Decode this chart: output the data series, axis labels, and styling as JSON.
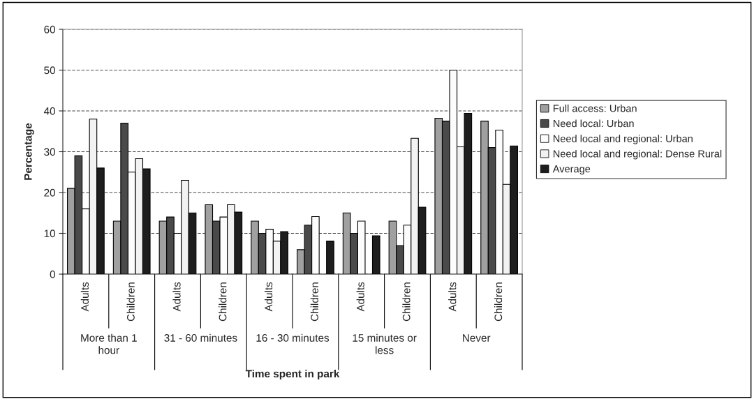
{
  "chart_data": {
    "type": "bar",
    "xlabel": "Time spent in park",
    "ylabel": "Percentage",
    "categories": [
      "Adults",
      "Children",
      "Adults",
      "Children",
      "Adults",
      "Children",
      "Adults",
      "Children",
      "Adults",
      "Children"
    ],
    "series": [
      {
        "name": "Full access: Urban",
        "color": "#a0a0a0",
        "values": [
          21,
          13,
          13,
          17,
          13,
          6,
          15,
          13,
          38.2,
          37.5
        ]
      },
      {
        "name": "Need local: Urban",
        "color": "#4a4a4a",
        "values": [
          29,
          37,
          14,
          13,
          10,
          12,
          10,
          7,
          37.5,
          31
        ]
      },
      {
        "name": "Need local and regional: Urban",
        "color": "#fcfcfc",
        "values": [
          16,
          25,
          10,
          14,
          11,
          14.1,
          13,
          12,
          50,
          35.3
        ]
      },
      {
        "name": "Need local and regional: Dense Rural",
        "color": "#f2f2f2",
        "values": [
          38,
          28.3,
          23,
          17,
          8.1,
          null,
          null,
          33.3,
          31.2,
          22
        ]
      },
      {
        "name": "Average",
        "color": "#1e1e1e",
        "values": [
          26,
          25.8,
          15,
          15.2,
          10.4,
          8.1,
          9.4,
          16.4,
          39.4,
          31.4
        ]
      }
    ],
    "annotations": [
      "More than 1\nhour",
      "31 - 60 minutes",
      "16 - 30 minutes",
      "15 minutes or\nless",
      "Never"
    ],
    "ylim": [
      0,
      60
    ],
    "yticks": [
      0,
      10,
      20,
      30,
      40,
      50,
      60
    ],
    "grid": "y",
    "legend": "right"
  }
}
